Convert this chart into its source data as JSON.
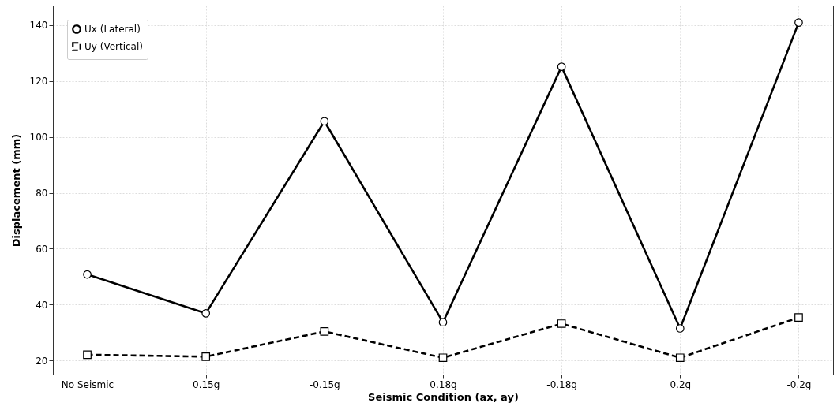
{
  "chart_data": {
    "type": "line",
    "xlabel": "Seismic Condition (ax, ay)",
    "ylabel": "Displacement (mm)",
    "categories": [
      "No Seismic",
      "0.15g",
      "-0.15g",
      "0.18g",
      "-0.18g",
      "0.2g",
      "-0.2g"
    ],
    "series": [
      {
        "name": "Ux (Lateral)",
        "color": "#000000",
        "marker": "circle",
        "line_style": "solid",
        "values": [
          50.8,
          36.9,
          105.6,
          33.7,
          125.1,
          31.5,
          140.9
        ]
      },
      {
        "name": "Uy (Vertical)",
        "color": "#000000",
        "marker": "square",
        "line_style": "dashed",
        "values": [
          22.1,
          21.4,
          30.4,
          21.0,
          33.2,
          21.0,
          35.4
        ]
      }
    ],
    "ylim": [
      15,
      147
    ],
    "yticks": [
      20,
      40,
      60,
      80,
      100,
      120,
      140
    ],
    "grid": true,
    "legend": "top left"
  }
}
